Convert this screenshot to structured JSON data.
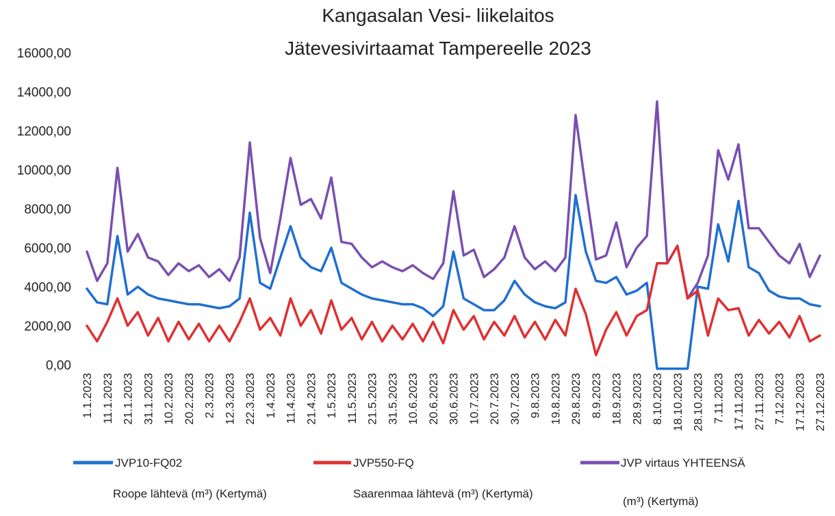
{
  "chart_data": {
    "type": "line",
    "title": [
      "Kangasalan Vesi- liikelaitos",
      "Jätevesivirtaamat Tampereelle 2023"
    ],
    "categories": [
      "1.1.2023",
      null,
      "11.1.2023",
      null,
      "21.1.2023",
      null,
      "31.1.2023",
      null,
      "10.2.2023",
      null,
      "20.2.2023",
      null,
      "2.3.2023",
      null,
      "12.3.2023",
      null,
      "22.3.2023",
      null,
      "1.4.2023",
      null,
      "11.4.2023",
      null,
      "21.4.2023",
      null,
      "1.5.2023",
      null,
      "11.5.2023",
      null,
      "21.5.2023",
      null,
      "31.5.2023",
      null,
      "10.6.2023",
      null,
      "20.6.2023",
      null,
      "30.6.2023",
      null,
      "10.7.2023",
      null,
      "20.7.2023",
      null,
      "30.7.2023",
      null,
      "9.8.2023",
      null,
      "19.8.2023",
      null,
      "29.8.2023",
      null,
      "8.9.2023",
      null,
      "18.9.2023",
      null,
      "28.9.2023",
      null,
      "8.10.2023",
      null,
      "18.10.2023",
      null,
      "28.10.2023",
      null,
      "7.11.2023",
      null,
      "17.11.2023",
      null,
      "27.11.2023",
      null,
      "7.12.2023",
      null,
      "17.12.2023",
      null,
      "27.12.2023"
    ],
    "series": [
      {
        "name": "JVP virtaus YHTEENSÄ",
        "note": "(m³) (Kertymä)",
        "color": "#7a4fb0",
        "values": [
          5800,
          4300,
          5200,
          10100,
          5800,
          6700,
          5500,
          5300,
          4600,
          5200,
          4800,
          5100,
          4500,
          4900,
          4300,
          5500,
          11400,
          6500,
          4700,
          7500,
          10600,
          8200,
          8500,
          7500,
          9600,
          6300,
          6200,
          5500,
          5000,
          5300,
          5000,
          4800,
          5100,
          4700,
          4400,
          5200,
          8900,
          5600,
          5900,
          4500,
          4900,
          5500,
          7100,
          5500,
          4900,
          5300,
          4800,
          5500,
          12800,
          9000,
          5400,
          5600,
          7300,
          5000,
          6000,
          6600,
          13500,
          5200,
          6100,
          3400,
          4200,
          5600,
          11000,
          9500,
          11300,
          7000,
          7000,
          6300,
          5600,
          5200,
          6200,
          4500,
          5600
        ]
      },
      {
        "name": "JVP10-FQ02",
        "note": "Roope lähtevä (m³) (Kertymä)",
        "color": "#1f6fd1",
        "values": [
          3900,
          3200,
          3100,
          6600,
          3600,
          4000,
          3600,
          3400,
          3300,
          3200,
          3100,
          3100,
          3000,
          2900,
          3000,
          3400,
          7800,
          4200,
          3900,
          5500,
          7100,
          5500,
          5000,
          4800,
          6000,
          4200,
          3900,
          3600,
          3400,
          3300,
          3200,
          3100,
          3100,
          2900,
          2500,
          3000,
          5800,
          3400,
          3100,
          2800,
          2800,
          3300,
          4300,
          3600,
          3200,
          3000,
          2900,
          3200,
          8700,
          5800,
          4300,
          4200,
          4500,
          3600,
          3800,
          4200,
          -200,
          -200,
          -200,
          -200,
          4000,
          3900,
          7200,
          5300,
          8400,
          5000,
          4700,
          3800,
          3500,
          3400,
          3400,
          3100,
          3000
        ]
      },
      {
        "name": "JVP550-FQ",
        "note": "Saarenmaa lähtevä (m³) (Kertymä)",
        "color": "#e03030",
        "values": [
          2000,
          1200,
          2200,
          3400,
          2000,
          2700,
          1500,
          2400,
          1200,
          2200,
          1300,
          2100,
          1200,
          2000,
          1200,
          2200,
          3400,
          1800,
          2400,
          1500,
          3400,
          2000,
          2800,
          1600,
          3300,
          1800,
          2400,
          1300,
          2200,
          1200,
          2000,
          1300,
          2100,
          1200,
          2200,
          1100,
          2800,
          1800,
          2500,
          1300,
          2200,
          1500,
          2500,
          1400,
          2200,
          1300,
          2300,
          1500,
          3900,
          2600,
          500,
          1800,
          2700,
          1500,
          2500,
          2800,
          5200,
          5200,
          6100,
          3400,
          3800,
          1500,
          3400,
          2800,
          2900,
          1500,
          2300,
          1600,
          2200,
          1400,
          2500,
          1200,
          1500
        ]
      }
    ],
    "ylim": [
      0,
      16000
    ],
    "yticks": [
      {
        "value": 0,
        "label": "0,00"
      },
      {
        "value": 2000,
        "label": "2000,00"
      },
      {
        "value": 4000,
        "label": "4000,00"
      },
      {
        "value": 6000,
        "label": "6000,00"
      },
      {
        "value": 8000,
        "label": "8000,00"
      },
      {
        "value": 10000,
        "label": "10000,00"
      },
      {
        "value": 12000,
        "label": "12000,00"
      },
      {
        "value": 14000,
        "label": "14000,00"
      },
      {
        "value": 16000,
        "label": "16000,00"
      }
    ],
    "grid": false,
    "legend": "bottom"
  }
}
